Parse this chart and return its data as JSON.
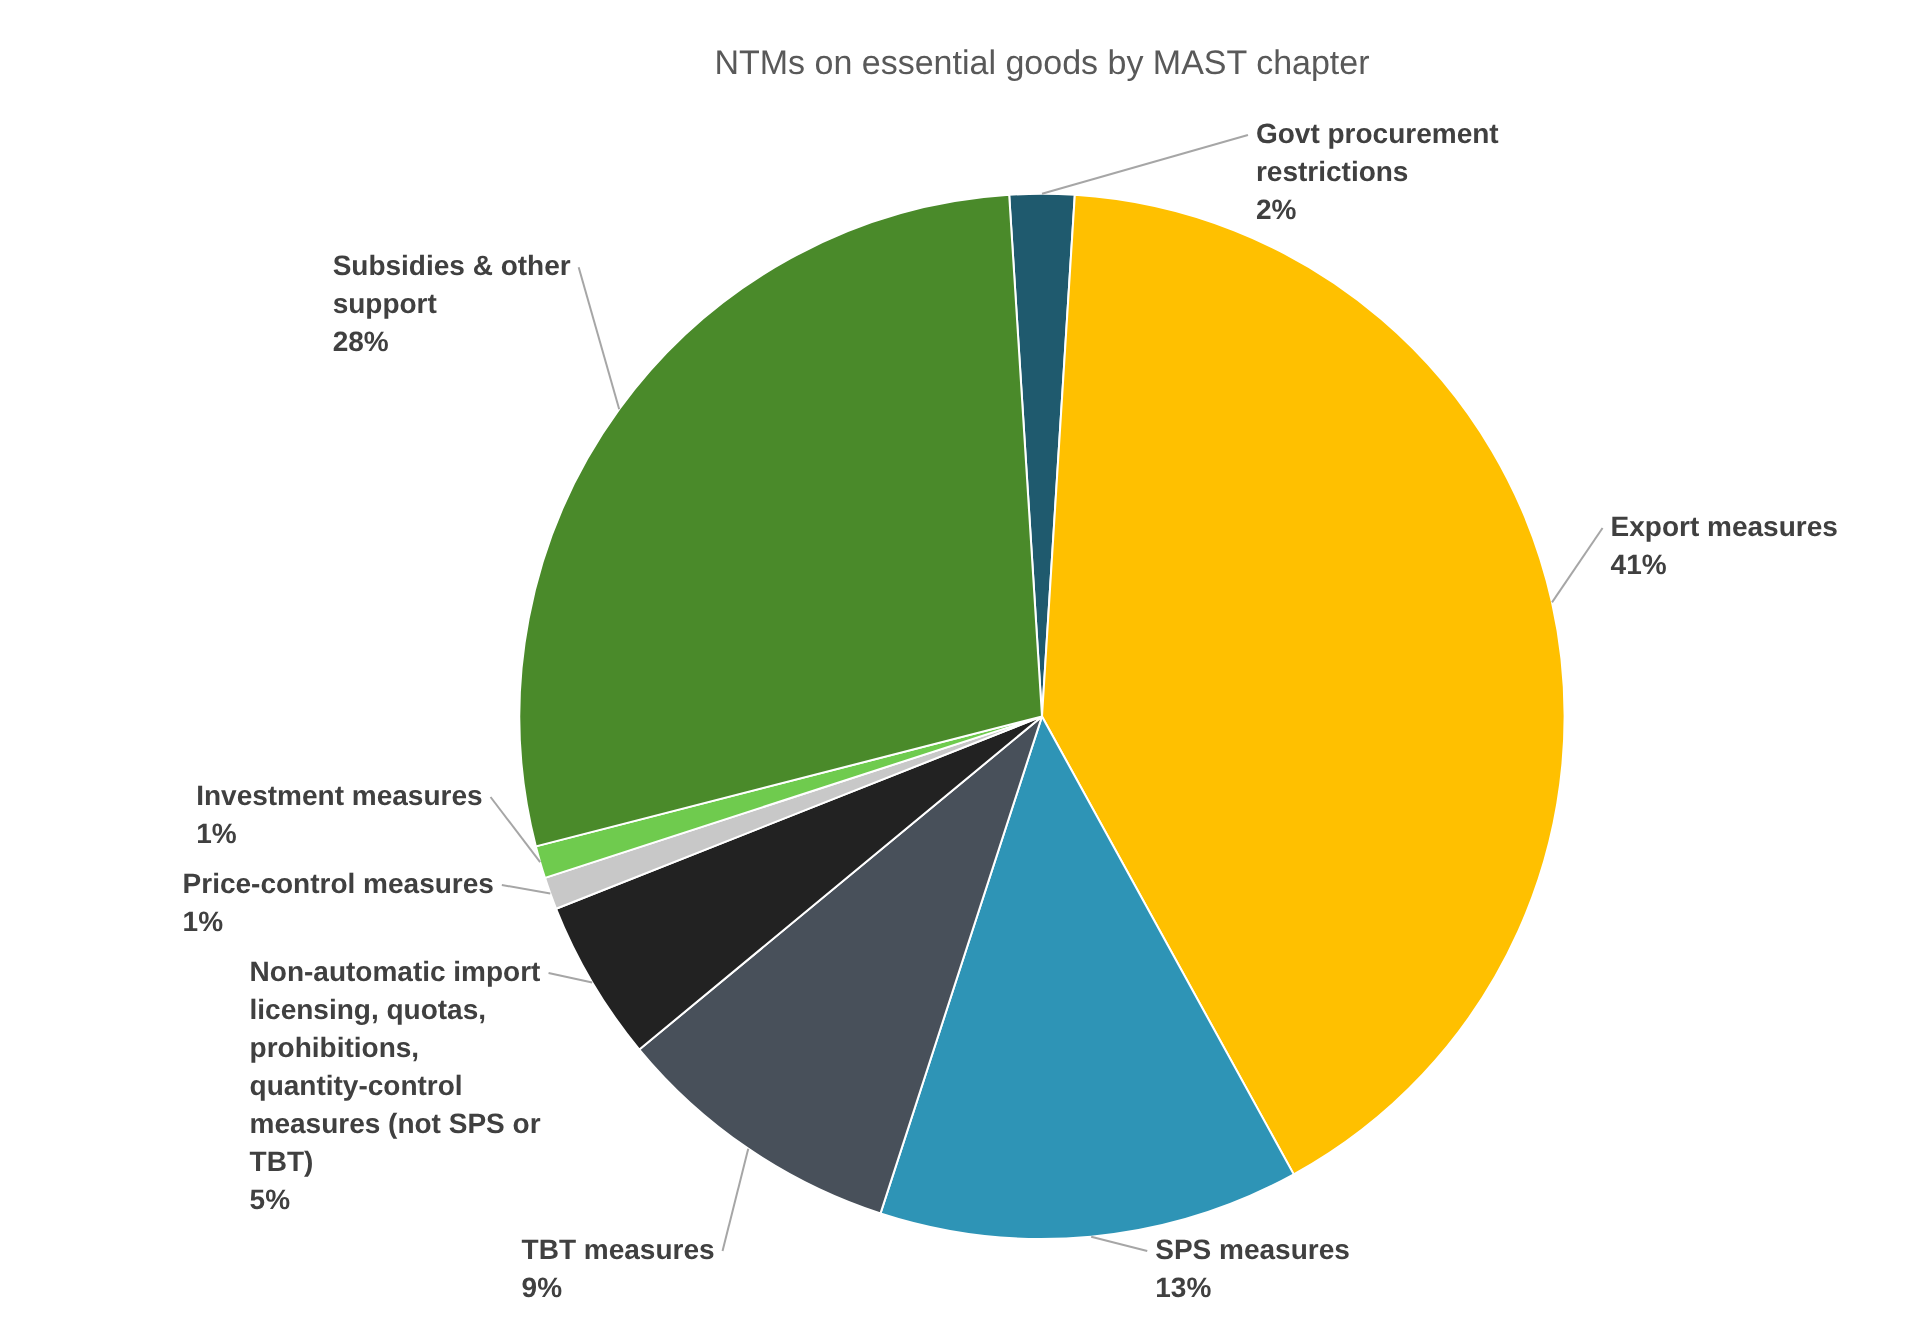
{
  "chart_data": {
    "type": "pie",
    "title": "NTMs on essential goods by MAST chapter",
    "categories": [
      "Govt procurement restrictions",
      "Export measures",
      "SPS measures",
      "TBT measures",
      "Non-automatic import licensing, quotas, prohibitions, quantity-control measures (not SPS or TBT)",
      "Price-control measures",
      "Investment measures",
      "Subsidies & other support"
    ],
    "values": [
      2,
      41,
      13,
      9,
      5,
      1,
      1,
      28
    ],
    "colors": [
      "#1f5a6e",
      "#ffc000",
      "#2e94b6",
      "#48505a",
      "#222222",
      "#c8c8c8",
      "#6fcb4e",
      "#4a8a2a"
    ],
    "value_labels": [
      "2%",
      "41%",
      "13%",
      "9%",
      "5%",
      "1%",
      "1%",
      "28%"
    ]
  }
}
